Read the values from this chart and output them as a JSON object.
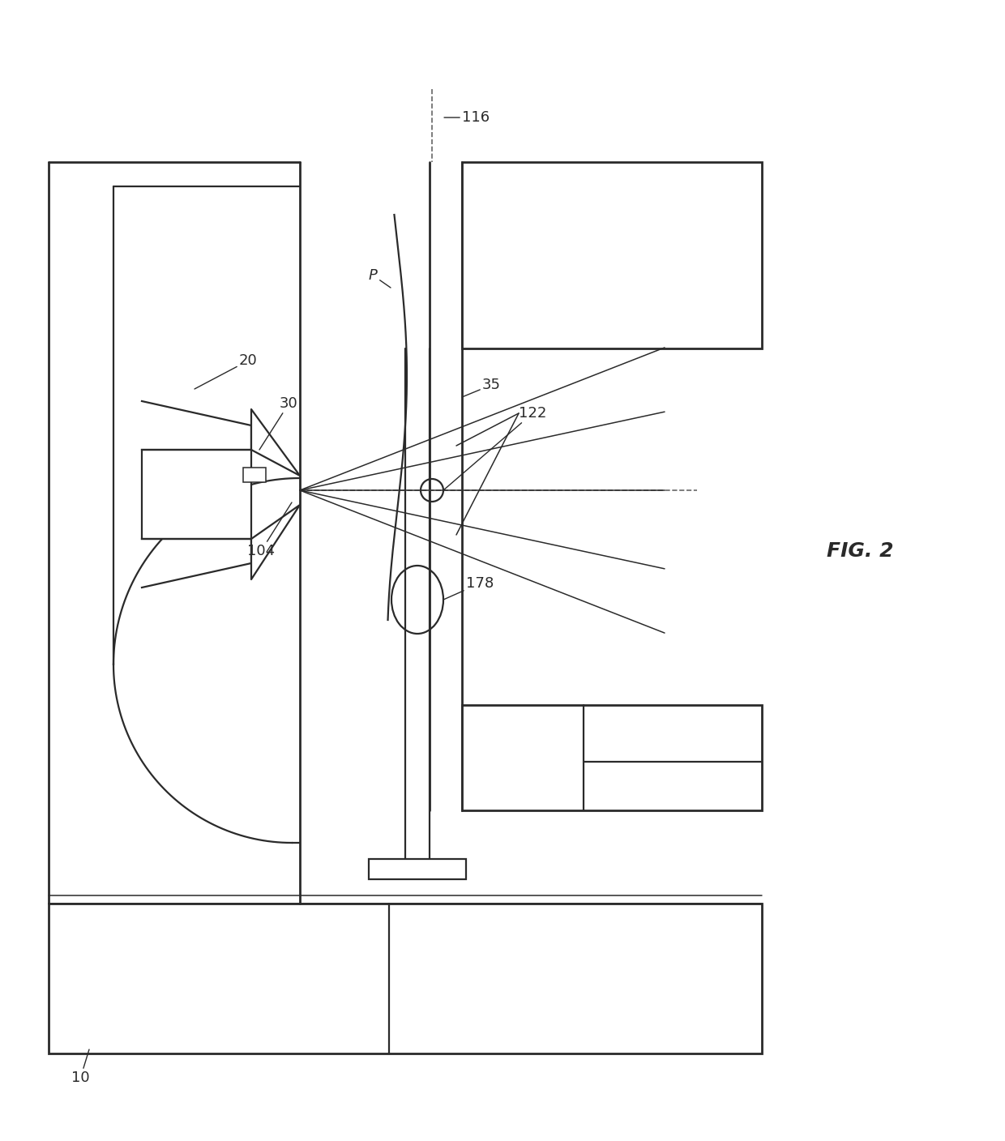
{
  "fig_label": "FIG. 2",
  "line_color": "#2a2a2a",
  "bg_color": "#ffffff",
  "lw_thick": 2.0,
  "lw_main": 1.6,
  "lw_thin": 1.1,
  "lw_dash": 1.2,
  "fontsize": 13
}
